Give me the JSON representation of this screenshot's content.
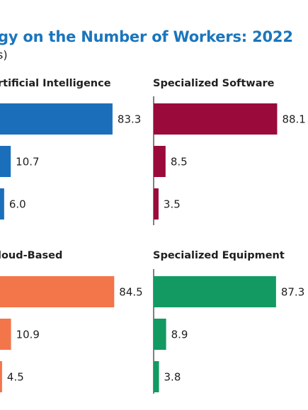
{
  "title": "gy on the Number of Workers: 2022",
  "subtitle": "s)",
  "chart_data": [
    {
      "type": "bar",
      "title": "rtificial Intelligence",
      "color": "#1b6fba",
      "values": [
        83.3,
        10.7,
        6.0
      ],
      "labels": [
        "83.3",
        "10.7",
        "6.0"
      ]
    },
    {
      "type": "bar",
      "title": "Specialized Software",
      "color": "#9a0a3a",
      "values": [
        88.1,
        8.5,
        3.5
      ],
      "labels": [
        "88.1",
        "8.5",
        "3.5"
      ]
    },
    {
      "type": "bar",
      "title": "loud-Based",
      "color": "#f3754a",
      "values": [
        84.5,
        10.9,
        4.5
      ],
      "labels": [
        "84.5",
        "10.9",
        "4.5"
      ]
    },
    {
      "type": "bar",
      "title": "Specialized Equipment",
      "color": "#129a62",
      "values": [
        87.3,
        8.9,
        3.8
      ],
      "labels": [
        "87.3",
        "8.9",
        "3.8"
      ]
    }
  ]
}
